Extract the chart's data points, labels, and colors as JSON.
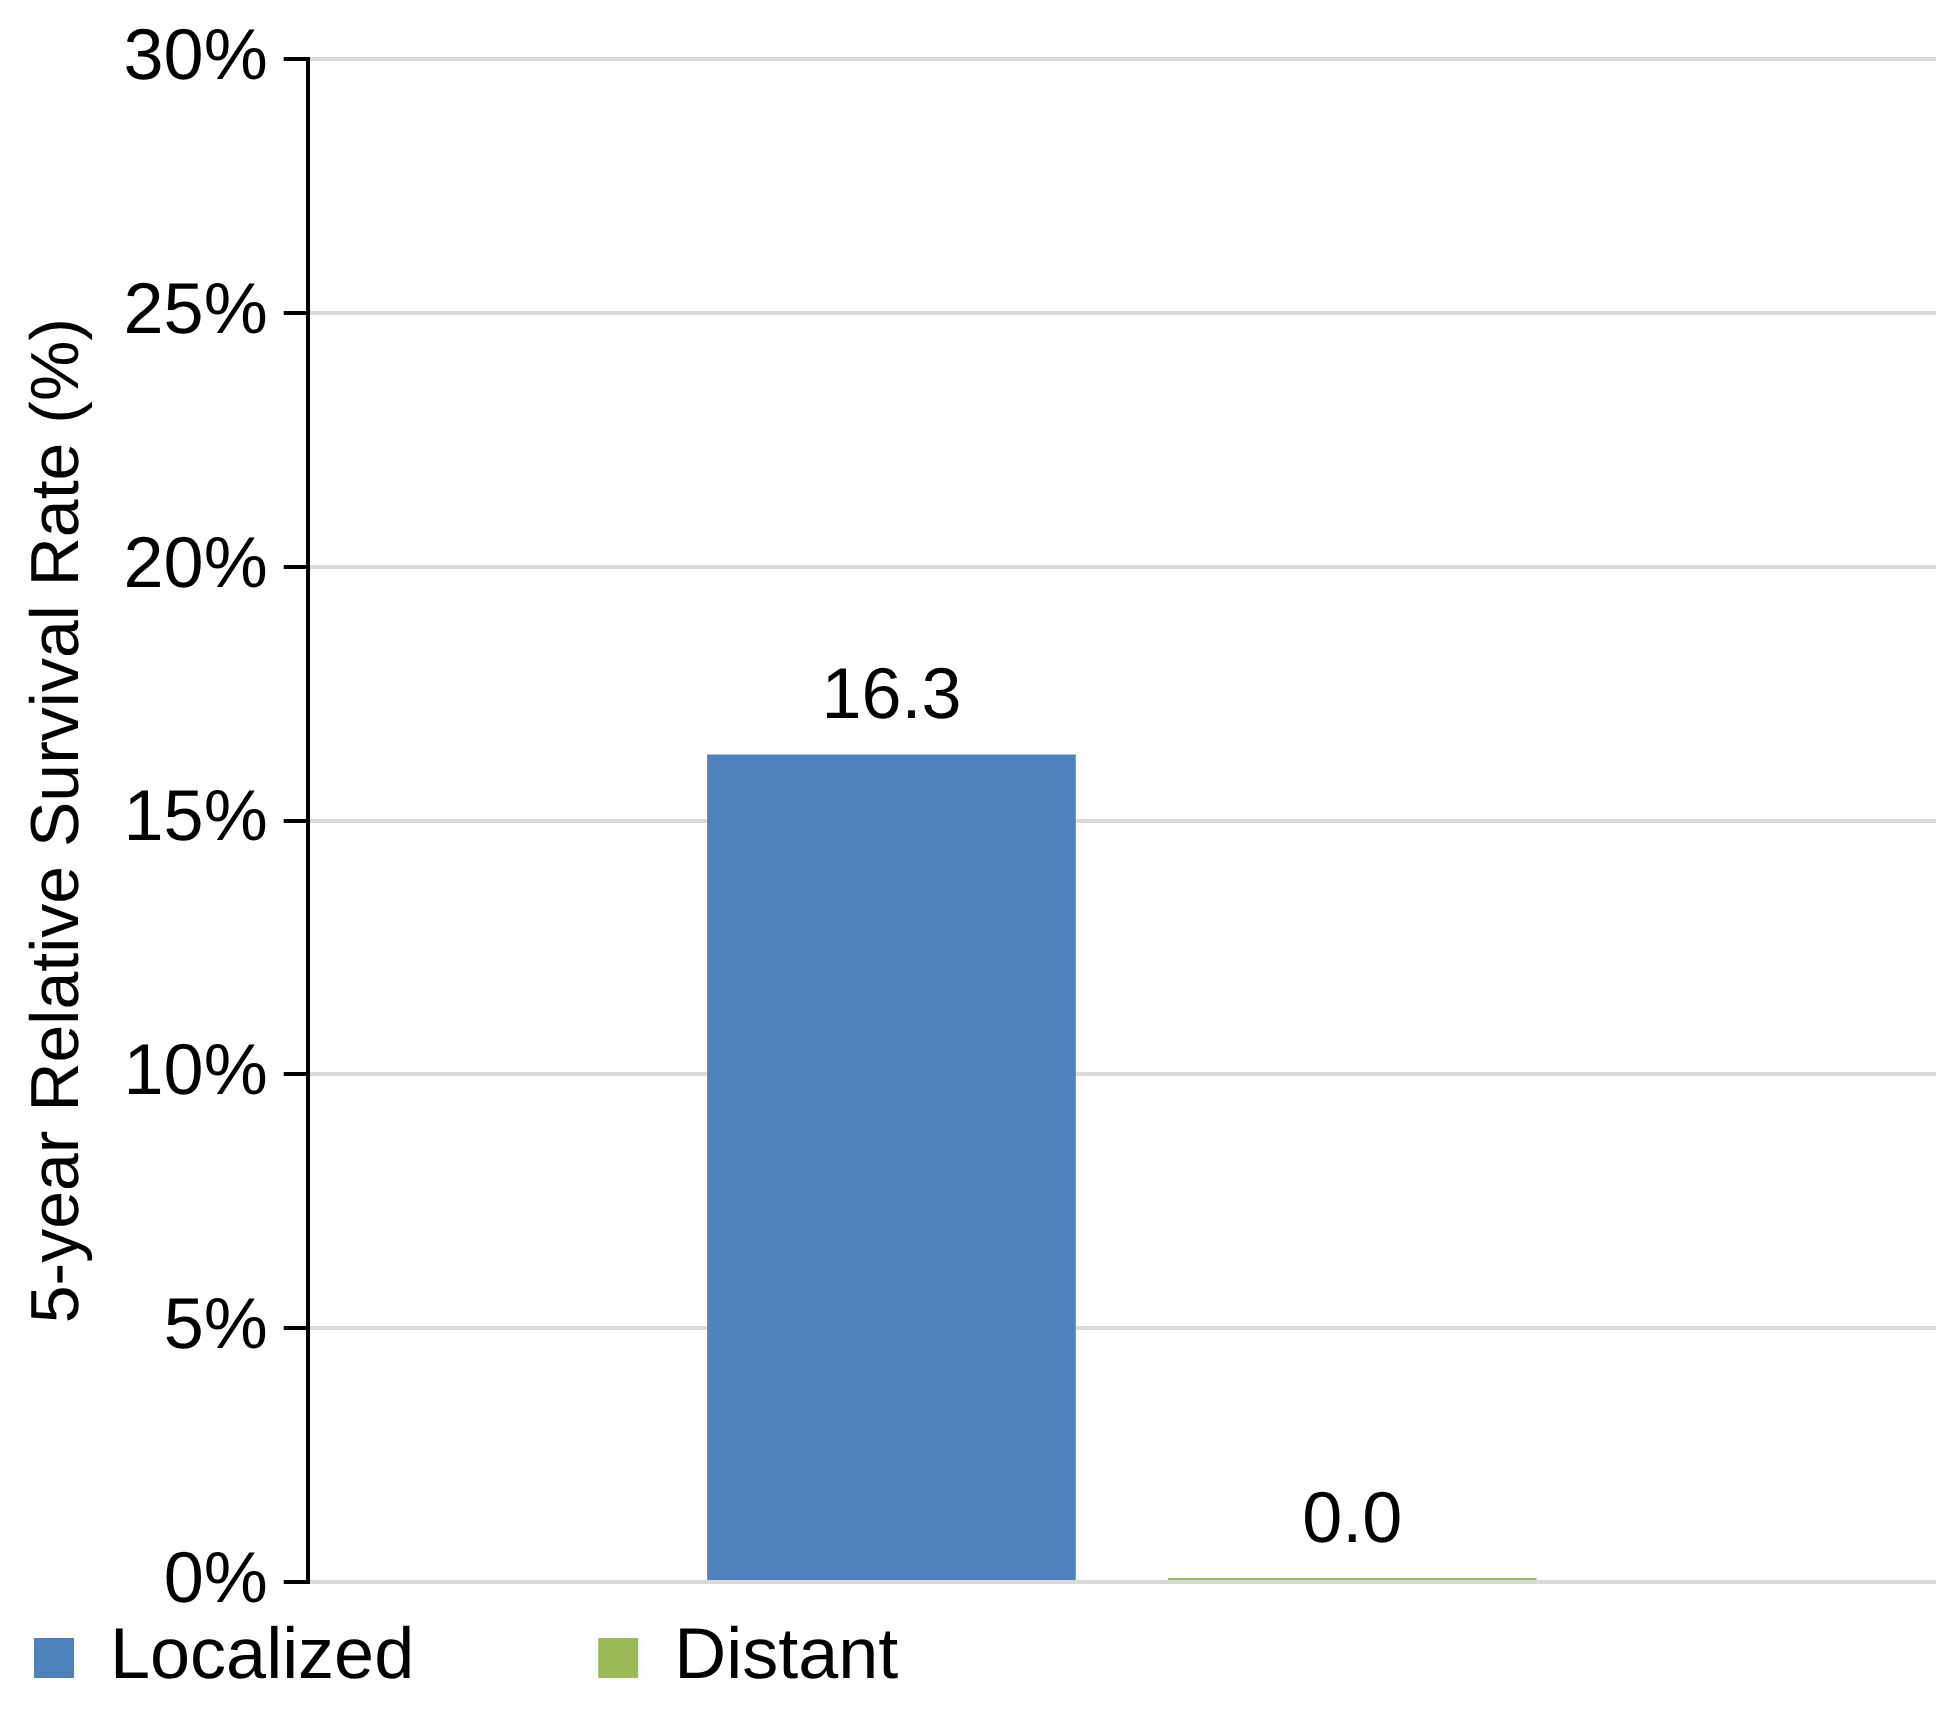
{
  "chart_data": {
    "type": "bar",
    "ylabel": "5-year Relative Survival Rate (%)",
    "categories": [
      null
    ],
    "series": [
      {
        "name": "Localized",
        "color": "#4f81bd",
        "values": [
          16.3
        ],
        "value_labels": [
          "16.3"
        ]
      },
      {
        "name": "Distant",
        "color": "#9bbb59",
        "values": [
          0
        ],
        "value_labels": [
          "0.0"
        ]
      }
    ],
    "ylim": [
      0,
      30
    ],
    "yticks": [
      {
        "value": 0,
        "label": "0%"
      },
      {
        "value": 5,
        "label": "5%"
      },
      {
        "value": 10,
        "label": "10%"
      },
      {
        "value": 15,
        "label": "15%"
      },
      {
        "value": 20,
        "label": "20%"
      },
      {
        "value": 25,
        "label": "25%"
      },
      {
        "value": 30,
        "label": "30%"
      }
    ],
    "grid": "y",
    "legend": "bottom left"
  }
}
